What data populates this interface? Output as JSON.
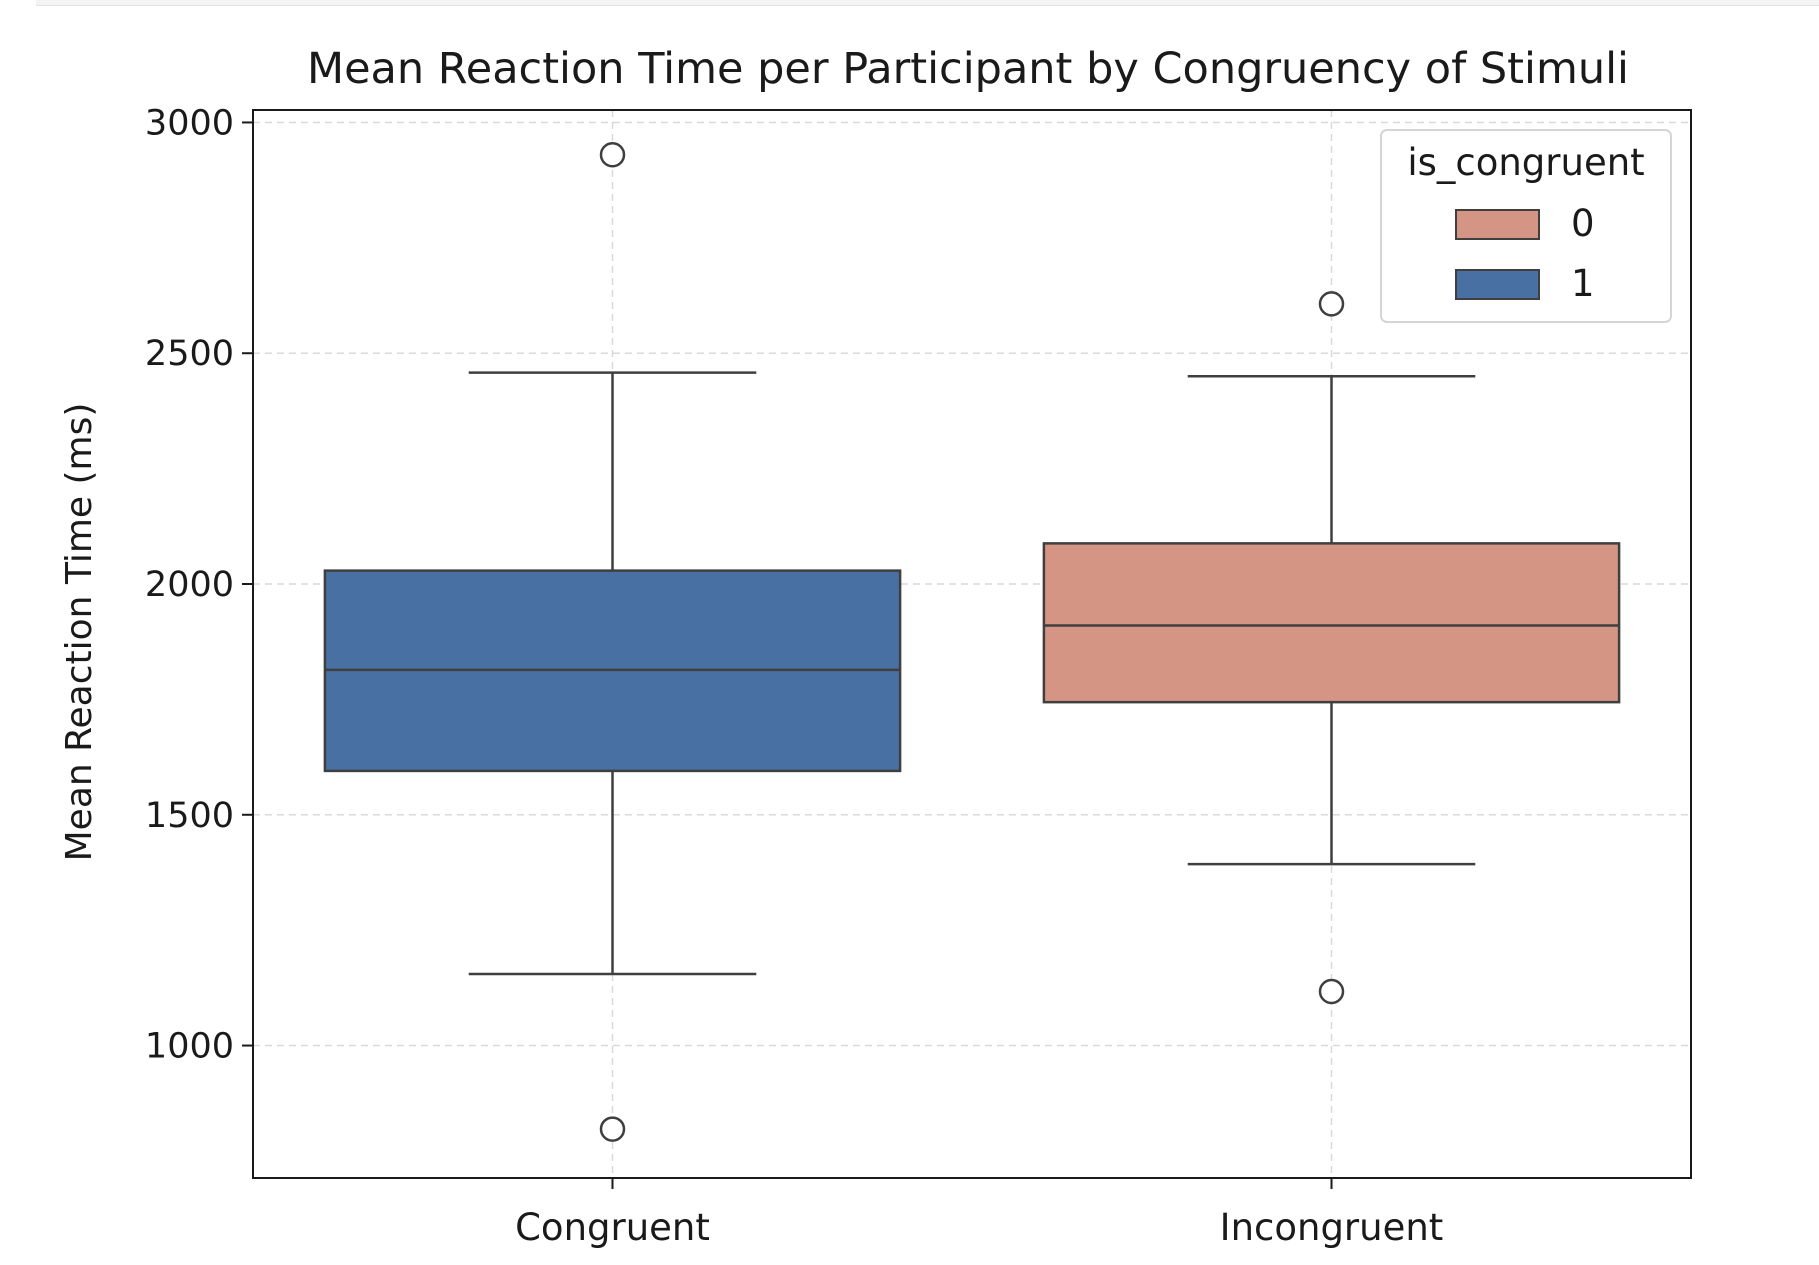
{
  "chart_data": {
    "type": "box",
    "title": "Mean Reaction Time per Participant by Congruency of Stimuli",
    "xlabel": "",
    "ylabel": "Mean Reaction Time (ms)",
    "ylim": [
      713,
      3027
    ],
    "yticks": [
      1000,
      1500,
      2000,
      2500,
      3000
    ],
    "grid": true,
    "legend": {
      "title": "is_congruent",
      "placement": "top-right",
      "entries": [
        {
          "label": "0",
          "color": "#d59585"
        },
        {
          "label": "1",
          "color": "#4870a2"
        }
      ]
    },
    "categories": [
      "Congruent",
      "Incongruent"
    ],
    "boxes": [
      {
        "category": "Congruent",
        "hue": "1",
        "color": "#4870a2",
        "whisker_low": 1155,
        "q1": 1595,
        "median": 1814,
        "q3": 2029,
        "whisker_high": 2458,
        "outliers": [
          2930,
          819
        ]
      },
      {
        "category": "Incongruent",
        "hue": "0",
        "color": "#d59585",
        "whisker_low": 1393,
        "q1": 1744,
        "median": 1910,
        "q3": 2088,
        "whisker_high": 2450,
        "outliers": [
          2607,
          1117
        ]
      }
    ]
  }
}
